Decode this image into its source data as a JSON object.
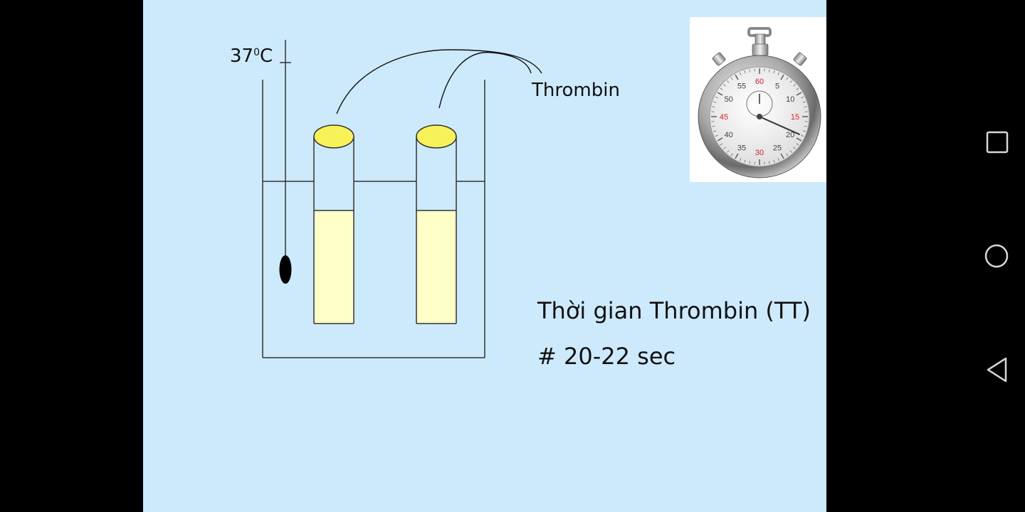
{
  "slide": {
    "temperature": {
      "value": "37",
      "superscript": "0",
      "unit": "C"
    },
    "reagent_label": "Thrombin",
    "test_name": "Thời gian Thrombin (TT)",
    "reference_time": "# 20-22 sec"
  },
  "stopwatch": {
    "dial_numbers": [
      "60",
      "5",
      "10",
      "15",
      "20",
      "25",
      "30",
      "35",
      "40",
      "45",
      "50",
      "55"
    ],
    "red_numbers": [
      "60",
      "15",
      "30",
      "45"
    ],
    "needle_at": 19
  },
  "navigation": {
    "buttons": [
      "recent-apps",
      "home",
      "back"
    ]
  },
  "colors": {
    "slide_bg": "#cdeafc",
    "liquid": "#ffffc8",
    "tube_cap": "#f7f25a",
    "dial_red": "#d0202a"
  }
}
